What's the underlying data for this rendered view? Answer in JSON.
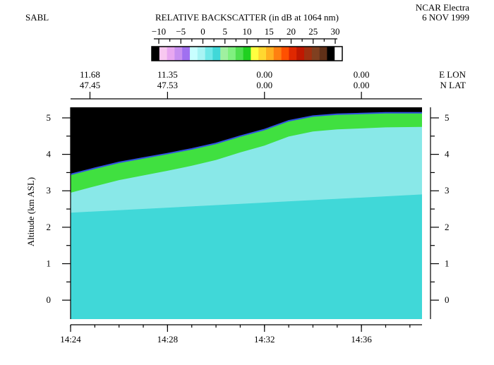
{
  "chart_data": {
    "type": "curtain",
    "title": "RELATIVE BACKSCATTER (in dB at 1064 nm)",
    "instrument": "SABL",
    "platform": "NCAR Electra",
    "date": "6 NOV 1999",
    "ylabel": "Altitude (km ASL)",
    "xlim": [
      864,
      878.5
    ],
    "xticks": [
      {
        "value": 864,
        "label": "14:24"
      },
      {
        "value": 868,
        "label": "14:28"
      },
      {
        "value": 872,
        "label": "14:32"
      },
      {
        "value": 876,
        "label": "14:36"
      }
    ],
    "ylim": [
      -0.52,
      5.29
    ],
    "yticks": [
      0,
      1,
      2,
      3,
      4,
      5
    ],
    "top_axis_labels": [
      "E LON",
      "N LAT"
    ],
    "top_ticks": [
      {
        "value": 864.8,
        "lon": "11.68",
        "lat": "47.45"
      },
      {
        "value": 868,
        "lon": "11.35",
        "lat": "47.53"
      },
      {
        "value": 872,
        "lon": "0.00",
        "lat": "0.00"
      },
      {
        "value": 876,
        "lon": "0.00",
        "lat": "0.00"
      }
    ],
    "colorbar": {
      "lim": [
        -11.6,
        31.6
      ],
      "ticks": [
        {
          "value": -10,
          "label": "−10"
        },
        {
          "value": -5,
          "label": "−5"
        },
        0,
        5,
        10,
        15,
        20,
        25,
        30
      ],
      "colors": [
        "#000000",
        "#f8c8f0",
        "#e8a8f0",
        "#c890f0",
        "#a070f0",
        "#c8ffff",
        "#a8f4f4",
        "#70e8e8",
        "#40d8d8",
        "#a0f0a0",
        "#80f080",
        "#50e050",
        "#20d020",
        "#ffff40",
        "#ffd830",
        "#ffb020",
        "#ff8010",
        "#ff5000",
        "#e02800",
        "#c01800",
        "#a03010",
        "#804020",
        "#603018",
        "#000000",
        "#ffffff"
      ]
    },
    "series": [
      {
        "name": "Aircraft altitude",
        "color": "#3050e0",
        "x": [
          864,
          865,
          866,
          867,
          868,
          869,
          870,
          871,
          872,
          873,
          874,
          875,
          876,
          877,
          878.5
        ],
        "values": [
          3.45,
          3.62,
          3.78,
          3.9,
          4.02,
          4.15,
          4.3,
          4.5,
          4.68,
          4.92,
          5.05,
          5.1,
          5.12,
          5.14,
          5.14
        ]
      }
    ],
    "fill_colors": {
      "above": "#000000",
      "band": "#40e040",
      "haze": "#a8f0f0",
      "boundary_layer": "#40d8d8"
    }
  }
}
